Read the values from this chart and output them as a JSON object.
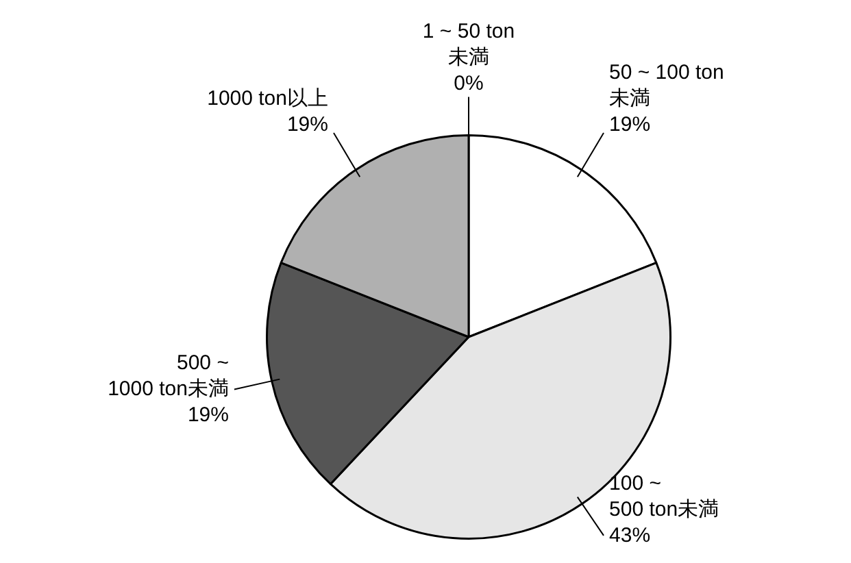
{
  "chart_data": {
    "type": "pie",
    "categories": [
      "1 ~ 50 ton\n未満",
      "50 ~ 100 ton\n未満",
      "100 ~\n500 ton未満",
      "500 ~\n1000 ton未満",
      "1000 ton以上"
    ],
    "values": [
      0,
      19,
      43,
      19,
      19
    ],
    "value_labels": [
      "0%",
      "19%",
      "43%",
      "19%",
      "19%"
    ],
    "colors": [
      "#ffffff",
      "#ffffff",
      "#e6e6e6",
      "#555555",
      "#b0b0b0"
    ],
    "legend": false
  }
}
